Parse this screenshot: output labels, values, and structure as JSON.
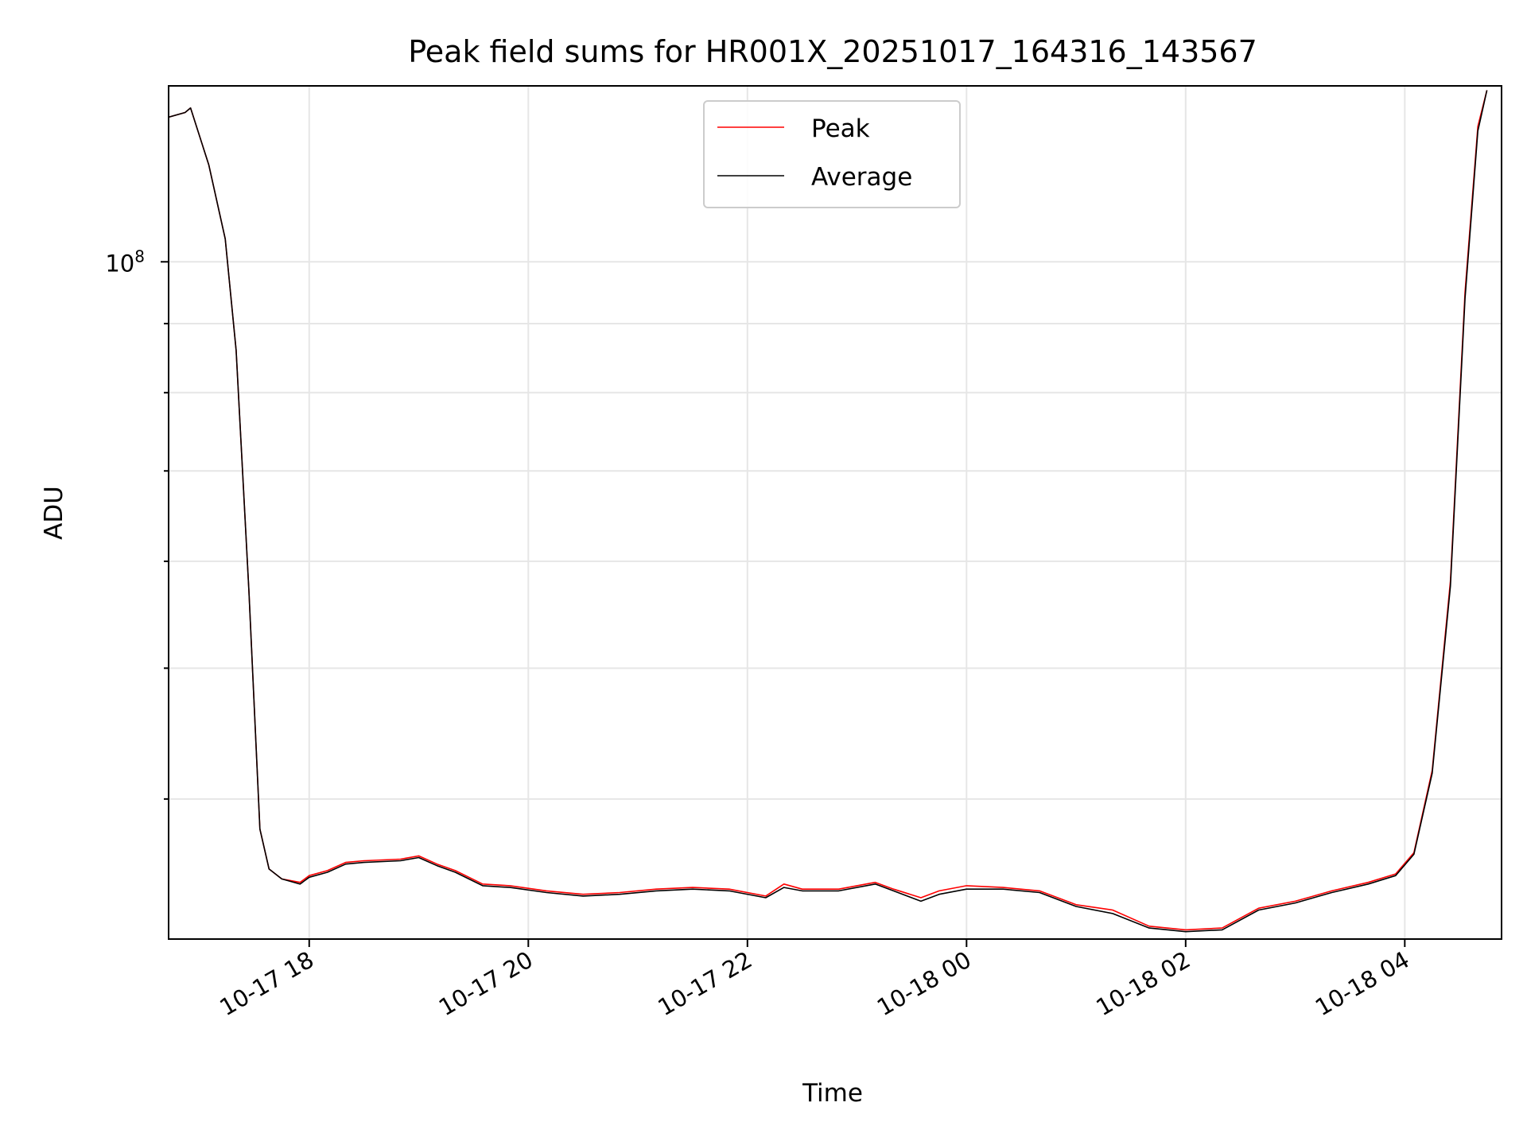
{
  "chart_data": {
    "type": "line",
    "title": "Peak field sums for HR001X_20251017_164316_143567",
    "xlabel": "Time",
    "ylabel": "ADU",
    "yscale": "log",
    "grid": true,
    "legend_position": "upper center",
    "xlim": [
      "2025-10-17 16:43",
      "2025-10-18 04:53"
    ],
    "ylim": [
      31500000,
      135000000
    ],
    "x_ticks": [
      "10-17 18",
      "10-17 20",
      "10-17 22",
      "10-18 00",
      "10-18 02",
      "10-18 04"
    ],
    "y_ticks": [
      {
        "value": 100000000,
        "label": "10",
        "exponent": "8"
      }
    ],
    "colors": {
      "peak": "#ff0000",
      "average": "#000000"
    },
    "series": [
      {
        "name": "Peak",
        "color": "#ff0000",
        "x": [
          "2025-10-17 16:43",
          "2025-10-17 16:52",
          "2025-10-17 16:55",
          "2025-10-17 17:05",
          "2025-10-17 17:14",
          "2025-10-17 17:20",
          "2025-10-17 17:27",
          "2025-10-17 17:33",
          "2025-10-17 17:38",
          "2025-10-17 17:45",
          "2025-10-17 17:55",
          "2025-10-17 18:00",
          "2025-10-17 18:10",
          "2025-10-17 18:20",
          "2025-10-17 18:30",
          "2025-10-17 18:50",
          "2025-10-17 19:00",
          "2025-10-17 19:10",
          "2025-10-17 19:20",
          "2025-10-17 19:35",
          "2025-10-17 19:50",
          "2025-10-17 20:10",
          "2025-10-17 20:30",
          "2025-10-17 20:50",
          "2025-10-17 21:10",
          "2025-10-17 21:30",
          "2025-10-17 21:50",
          "2025-10-17 22:10",
          "2025-10-17 22:20",
          "2025-10-17 22:30",
          "2025-10-17 22:50",
          "2025-10-17 23:10",
          "2025-10-17 23:20",
          "2025-10-17 23:35",
          "2025-10-17 23:45",
          "2025-10-18 00:00",
          "2025-10-18 00:20",
          "2025-10-18 00:40",
          "2025-10-18 01:00",
          "2025-10-18 01:20",
          "2025-10-18 01:40",
          "2025-10-18 02:00",
          "2025-10-18 02:20",
          "2025-10-18 02:40",
          "2025-10-18 03:00",
          "2025-10-18 03:20",
          "2025-10-18 03:40",
          "2025-10-18 03:55",
          "2025-10-18 04:05",
          "2025-10-18 04:15",
          "2025-10-18 04:25",
          "2025-10-18 04:33",
          "2025-10-18 04:40",
          "2025-10-18 04:45"
        ],
        "values": [
          128000000,
          129000000,
          130000000,
          118000000,
          104000000,
          86000000,
          57000000,
          38000000,
          35500000,
          34900000,
          34700000,
          35100000,
          35400000,
          35900000,
          36000000,
          36100000,
          36300000,
          35800000,
          35400000,
          34600000,
          34500000,
          34200000,
          34000000,
          34100000,
          34300000,
          34400000,
          34300000,
          33900000,
          34600000,
          34300000,
          34300000,
          34700000,
          34300000,
          33800000,
          34200000,
          34500000,
          34400000,
          34200000,
          33400000,
          33100000,
          32200000,
          32000000,
          32100000,
          33200000,
          33600000,
          34200000,
          34700000,
          35200000,
          36500000,
          42000000,
          58000000,
          95000000,
          126000000,
          134000000
        ]
      },
      {
        "name": "Average",
        "color": "#000000",
        "x": [
          "2025-10-17 16:43",
          "2025-10-17 16:52",
          "2025-10-17 16:55",
          "2025-10-17 17:05",
          "2025-10-17 17:14",
          "2025-10-17 17:20",
          "2025-10-17 17:27",
          "2025-10-17 17:33",
          "2025-10-17 17:38",
          "2025-10-17 17:45",
          "2025-10-17 17:55",
          "2025-10-17 18:00",
          "2025-10-17 18:10",
          "2025-10-17 18:20",
          "2025-10-17 18:30",
          "2025-10-17 18:50",
          "2025-10-17 19:00",
          "2025-10-17 19:10",
          "2025-10-17 19:20",
          "2025-10-17 19:35",
          "2025-10-17 19:50",
          "2025-10-17 20:10",
          "2025-10-17 20:30",
          "2025-10-17 20:50",
          "2025-10-17 21:10",
          "2025-10-17 21:30",
          "2025-10-17 21:50",
          "2025-10-17 22:10",
          "2025-10-17 22:20",
          "2025-10-17 22:30",
          "2025-10-17 22:50",
          "2025-10-17 23:10",
          "2025-10-17 23:20",
          "2025-10-17 23:35",
          "2025-10-17 23:45",
          "2025-10-18 00:00",
          "2025-10-18 00:20",
          "2025-10-18 00:40",
          "2025-10-18 01:00",
          "2025-10-18 01:20",
          "2025-10-18 01:40",
          "2025-10-18 02:00",
          "2025-10-18 02:20",
          "2025-10-18 02:40",
          "2025-10-18 03:00",
          "2025-10-18 03:20",
          "2025-10-18 03:40",
          "2025-10-18 03:55",
          "2025-10-18 04:05",
          "2025-10-18 04:15",
          "2025-10-18 04:25",
          "2025-10-18 04:33",
          "2025-10-18 04:40",
          "2025-10-18 04:45"
        ],
        "values": [
          128000000,
          129000000,
          130000000,
          118000000,
          104000000,
          86000000,
          57000000,
          38000000,
          35500000,
          34900000,
          34600000,
          35000000,
          35300000,
          35800000,
          35900000,
          36000000,
          36200000,
          35700000,
          35300000,
          34500000,
          34400000,
          34100000,
          33900000,
          34000000,
          34200000,
          34300000,
          34200000,
          33800000,
          34400000,
          34200000,
          34200000,
          34600000,
          34200000,
          33600000,
          34000000,
          34300000,
          34300000,
          34100000,
          33300000,
          32900000,
          32100000,
          31900000,
          32000000,
          33100000,
          33500000,
          34100000,
          34600000,
          35100000,
          36400000,
          41800000,
          57500000,
          94000000,
          125000000,
          134000000
        ]
      }
    ]
  }
}
